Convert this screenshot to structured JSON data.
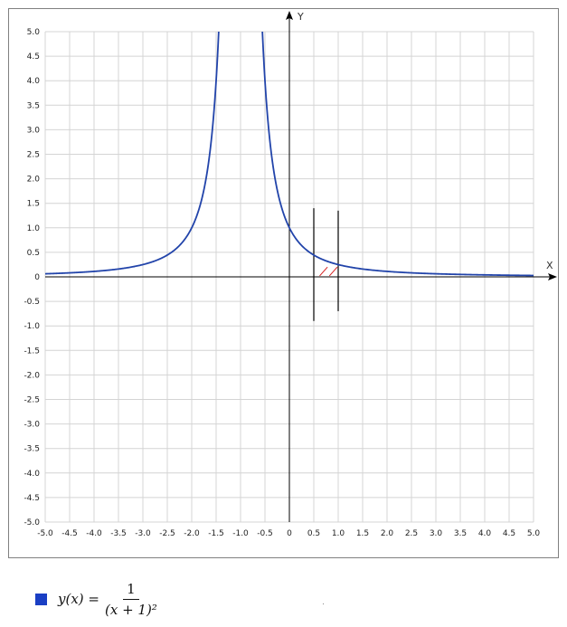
{
  "chart_data": {
    "type": "line",
    "title": "",
    "xlabel": "X",
    "ylabel": "Y",
    "xlim": [
      -5.0,
      5.0
    ],
    "ylim": [
      -5.0,
      5.0
    ],
    "grid": true,
    "x_ticks": [
      "-5.0",
      "-4.5",
      "-4.0",
      "-3.5",
      "-3.0",
      "-2.5",
      "-2.0",
      "-1.5",
      "-1.0",
      "-0.5",
      "0",
      "0.5",
      "1.0",
      "1.5",
      "2.0",
      "2.5",
      "3.0",
      "3.5",
      "4.0",
      "4.5",
      "5.0"
    ],
    "y_ticks": [
      "5.0",
      "4.5",
      "4.0",
      "3.5",
      "3.0",
      "2.5",
      "2.0",
      "1.5",
      "1.0",
      "0.5",
      "0",
      "-0.5",
      "-1.0",
      "-1.5",
      "-2.0",
      "-2.5",
      "-3.0",
      "-3.5",
      "-4.0",
      "-4.5",
      "-5.0"
    ],
    "series": [
      {
        "name": "y(x) = 1/(x+1)^2",
        "function": "1/(x+1)^2",
        "color": "#2244aa"
      }
    ],
    "vertical_lines": [
      {
        "x": 0.5,
        "y_range": [
          -0.9,
          1.4
        ],
        "color": "#000000"
      },
      {
        "x": 1.0,
        "y_range": [
          -0.7,
          1.35
        ],
        "color": "#000000"
      }
    ],
    "hatch_region": {
      "x_range": [
        0.5,
        1.0
      ],
      "color": "#d62020"
    },
    "legend_position": "bottom-left"
  },
  "legend": {
    "lhs": "y(x) =",
    "numerator": "1",
    "denominator": "(x + 1)²",
    "swatch_color": "#1a3fc4"
  },
  "colors": {
    "grid": "#d4d4d4",
    "axis": "#000000",
    "curve": "#2244aa",
    "hatch": "#d62020"
  }
}
